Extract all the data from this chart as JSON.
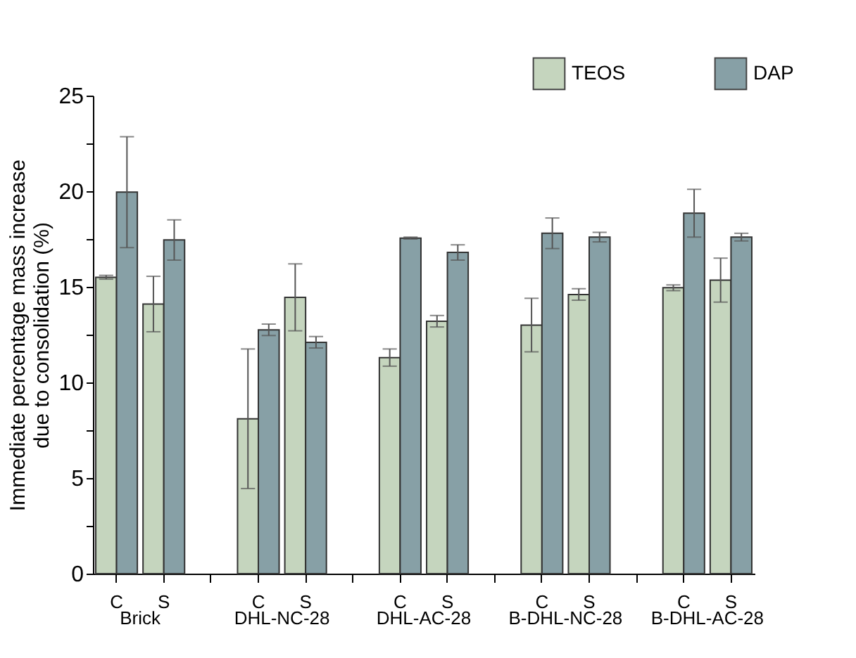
{
  "chart_data": {
    "type": "bar",
    "ylabel": "Immediate percentage mass increase due to consolidation (%)",
    "categories": [
      "C",
      "S",
      "C",
      "S",
      "C",
      "S",
      "C",
      "S",
      "C",
      "S"
    ],
    "series": [
      {
        "name": "TEOS",
        "color": "#c5d5be",
        "values": [
          15.5,
          14.1,
          8.1,
          14.45,
          11.3,
          13.2,
          13.0,
          14.6,
          14.95,
          15.35
        ],
        "errors": [
          0.1,
          1.45,
          3.65,
          1.75,
          0.45,
          0.3,
          1.4,
          0.3,
          0.15,
          1.15
        ]
      },
      {
        "name": "DAP",
        "color": "#87a0a6",
        "values": [
          19.95,
          17.45,
          12.75,
          12.1,
          17.55,
          16.8,
          17.8,
          17.6,
          18.85,
          17.6
        ],
        "errors": [
          2.9,
          1.05,
          0.3,
          0.3,
          0.05,
          0.4,
          0.8,
          0.25,
          1.25,
          0.2
        ]
      }
    ],
    "annotations": [
      "Brick",
      "DHL-NC-28",
      "DHL-AC-28",
      "B-DHL-NC-28",
      "B-DHL-AC-28"
    ],
    "ylim": [
      0,
      25
    ],
    "yticks": [
      0,
      {
        "value": 2.5,
        "label": null
      },
      5,
      {
        "value": 7.5,
        "label": null
      },
      10,
      {
        "value": 12.5,
        "label": null
      },
      15,
      {
        "value": 17.5,
        "label": null
      },
      20,
      {
        "value": 22.5,
        "label": null
      },
      25
    ],
    "grid": false,
    "legend": "top right"
  }
}
